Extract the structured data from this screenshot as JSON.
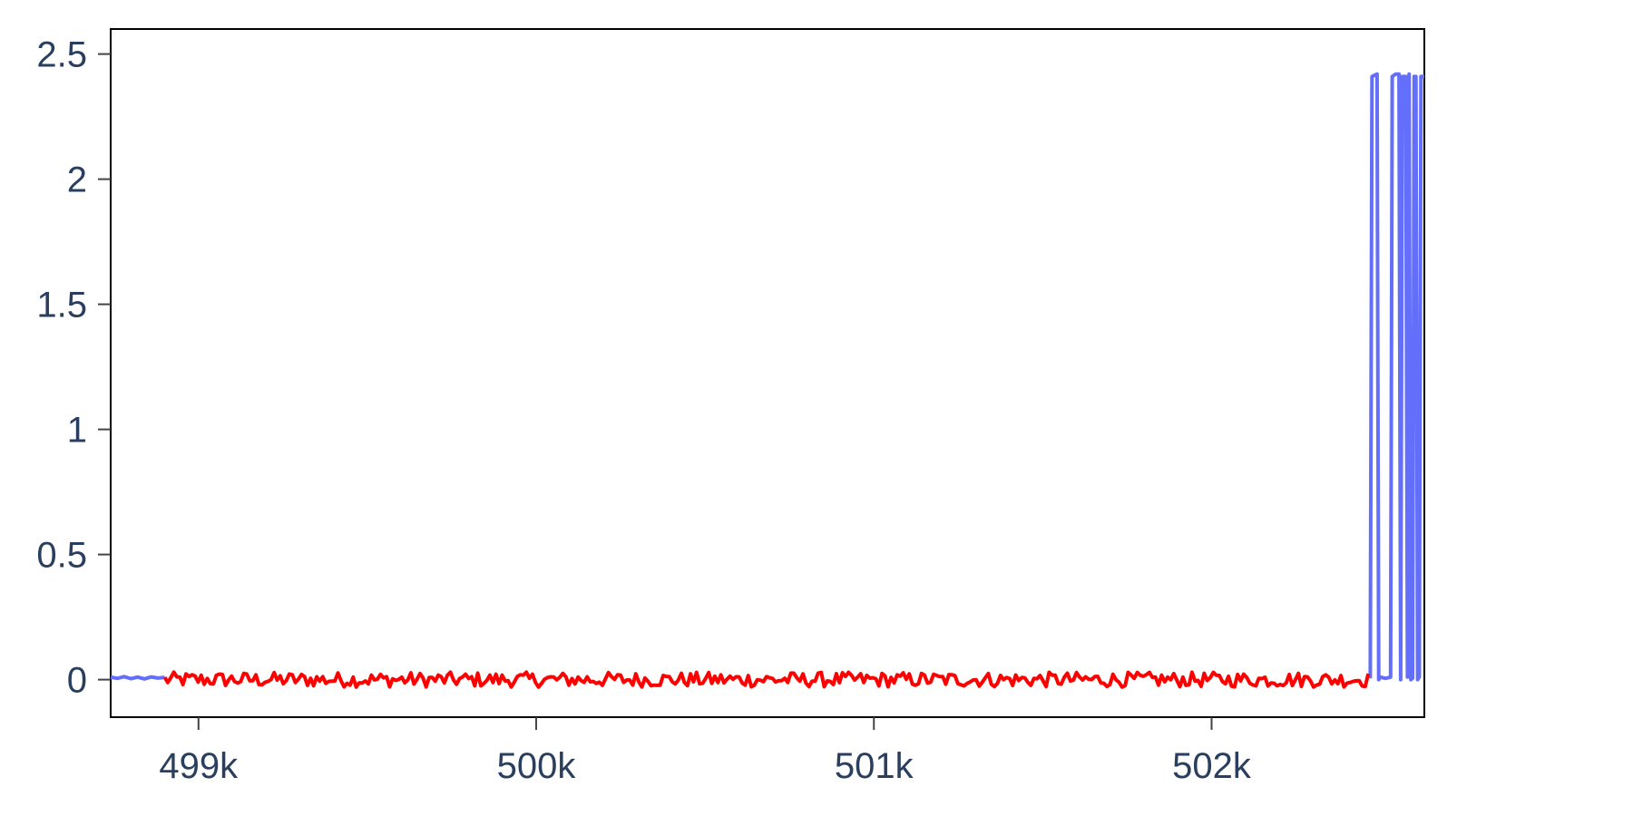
{
  "chart_data": {
    "type": "line",
    "title": "",
    "xlabel": "",
    "ylabel": "",
    "xlim": [
      498740,
      502630
    ],
    "ylim": [
      -0.15,
      2.6
    ],
    "x_ticks": [
      {
        "value": 499000,
        "label": "499k"
      },
      {
        "value": 500000,
        "label": "500k"
      },
      {
        "value": 501000,
        "label": "501k"
      },
      {
        "value": 502000,
        "label": "502k"
      }
    ],
    "y_ticks": [
      {
        "value": 0,
        "label": "0"
      },
      {
        "value": 0.5,
        "label": "0.5"
      },
      {
        "value": 1,
        "label": "1"
      },
      {
        "value": 1.5,
        "label": "1.5"
      },
      {
        "value": 2,
        "label": "2"
      },
      {
        "value": 2.5,
        "label": "2.5"
      }
    ],
    "grid": false,
    "series": [
      {
        "color": "#636efa",
        "segments": [
          {
            "points": [
              [
                498740,
                0.01
              ],
              [
                498760,
                0.005
              ],
              [
                498780,
                0.012
              ],
              [
                498800,
                0.004
              ],
              [
                498820,
                0.01
              ],
              [
                498840,
                0.003
              ],
              [
                498860,
                0.011
              ],
              [
                498880,
                0.006
              ],
              [
                498900,
                0.009
              ]
            ]
          },
          {
            "points": [
              [
                502470,
                0.005
              ],
              [
                502475,
                2.41
              ],
              [
                502490,
                2.42
              ],
              [
                502495,
                0.0
              ],
              [
                502500,
                0.01
              ],
              [
                502515,
                0.005
              ],
              [
                502530,
                0.01
              ],
              [
                502535,
                2.41
              ],
              [
                502545,
                2.42
              ],
              [
                502555,
                2.42
              ],
              [
                502560,
                0.0
              ],
              [
                502565,
                2.41
              ],
              [
                502575,
                2.41
              ],
              [
                502580,
                0.01
              ],
              [
                502585,
                2.42
              ],
              [
                502590,
                0.0
              ],
              [
                502595,
                0.005
              ],
              [
                502600,
                2.41
              ],
              [
                502605,
                2.41
              ],
              [
                502610,
                0.0
              ],
              [
                502615,
                0.01
              ],
              [
                502620,
                2.41
              ],
              [
                502630,
                2.41
              ]
            ]
          }
        ]
      },
      {
        "color": "#ff0000",
        "segments": [
          {
            "noise": true,
            "x_start": 498900,
            "x_end": 502470,
            "step": 9,
            "center": 0.0,
            "amplitude": 0.03
          }
        ]
      }
    ]
  }
}
